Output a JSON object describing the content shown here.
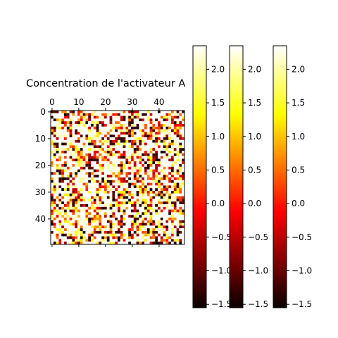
{
  "chart_data": {
    "type": "heatmap",
    "title": "Concentration de l'activateur A",
    "xlabel": "",
    "ylabel": "",
    "grid_size": [
      50,
      50
    ],
    "x_ticks": [
      "0",
      "10",
      "20",
      "30",
      "40"
    ],
    "y_ticks": [
      "0",
      "10",
      "20",
      "30",
      "40"
    ],
    "x_tick_position": "top",
    "colormap": "hot",
    "value_range": [
      -1.55,
      2.35
    ],
    "data_description_note_omitted": true,
    "colorbars": [
      {
        "ticks": [
          "2.0",
          "1.5",
          "1.0",
          "0.5",
          "0.0",
          "−0.5",
          "−1.0",
          "−1.5"
        ],
        "range": [
          -1.55,
          2.35
        ]
      },
      {
        "ticks": [
          "2.0",
          "1.5",
          "1.0",
          "0.5",
          "0.0",
          "−0.5",
          "−1.0",
          "−1.5"
        ],
        "range": [
          -1.55,
          2.35
        ]
      },
      {
        "ticks": [
          "2.0",
          "1.5",
          "1.0",
          "0.5",
          "0.0",
          "−0.5",
          "−1.0",
          "−1.5"
        ],
        "range": [
          -1.55,
          2.35
        ]
      }
    ],
    "colors": {
      "low": "#000000",
      "mid_low": "#e60000",
      "mid_high": "#ffff00",
      "high": "#ffffff"
    }
  }
}
